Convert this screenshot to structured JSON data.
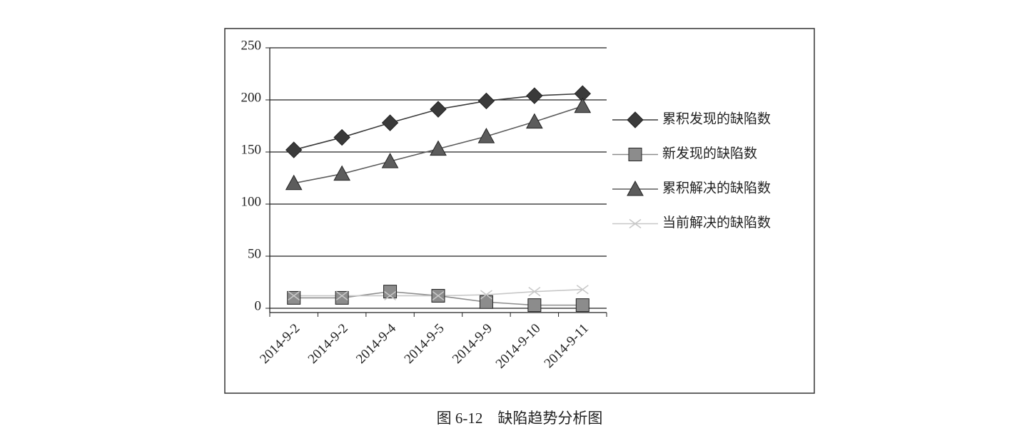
{
  "chart_data": {
    "type": "line",
    "caption": "图 6-12　缺陷趋势分析图",
    "categories": [
      "2014-9-2",
      "2014-9-2",
      "2014-9-4",
      "2014-9-5",
      "2014-9-9",
      "2014-9-10",
      "2014-9-11"
    ],
    "series": [
      {
        "name": "累积发现的缺陷数",
        "color": "#3a3a3a",
        "marker": "diamond",
        "values": [
          152,
          164,
          178,
          191,
          199,
          204,
          206
        ]
      },
      {
        "name": "新发现的缺陷数",
        "color": "#8c8c8c",
        "marker": "square",
        "values": [
          10,
          10,
          16,
          12,
          6,
          3,
          3
        ]
      },
      {
        "name": "累积解决的缺陷数",
        "color": "#5c5c5c",
        "marker": "triangle",
        "values": [
          120,
          129,
          141,
          153,
          165,
          179,
          194
        ]
      },
      {
        "name": "当前解决的缺陷数",
        "color": "#c8c8c8",
        "marker": "x",
        "values": [
          12,
          12,
          12,
          12,
          13,
          16,
          18
        ]
      }
    ],
    "ylim": [
      0,
      250
    ],
    "yticks": [
      0,
      50,
      100,
      150,
      200,
      250
    ],
    "grid": true,
    "legend": "right"
  }
}
